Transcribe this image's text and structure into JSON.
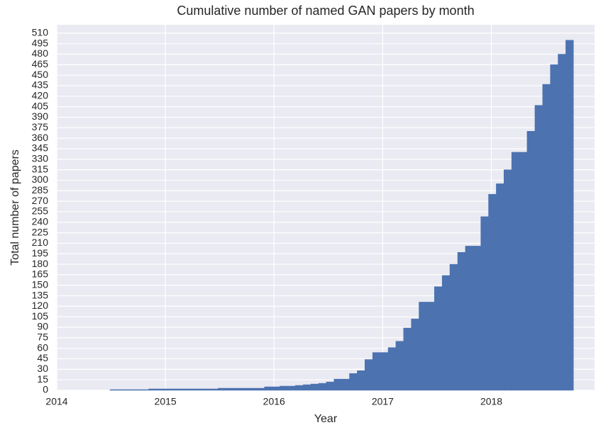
{
  "chart_data": {
    "type": "histogram",
    "title": "Cumulative number of named GAN papers by month",
    "xlabel": "Year",
    "ylabel": "Total number of papers",
    "bins": [
      2014.49,
      2014.561,
      2014.632,
      2014.703,
      2014.774,
      2014.846,
      2014.917,
      2014.988,
      2015.059,
      2015.13,
      2015.201,
      2015.272,
      2015.343,
      2015.414,
      2015.485,
      2015.557,
      2015.628,
      2015.699,
      2015.77,
      2015.841,
      2015.912,
      2015.983,
      2016.054,
      2016.125,
      2016.196,
      2016.268,
      2016.339,
      2016.41,
      2016.481,
      2016.552,
      2016.623,
      2016.694,
      2016.765,
      2016.836,
      2016.907,
      2016.979,
      2017.05,
      2017.121,
      2017.192,
      2017.263,
      2017.334,
      2017.405,
      2017.476,
      2017.547,
      2017.618,
      2017.69,
      2017.761,
      2017.832,
      2017.903,
      2017.974,
      2018.045,
      2018.116,
      2018.187,
      2018.258,
      2018.329,
      2018.401,
      2018.472,
      2018.543,
      2018.614,
      2018.685,
      2018.756
    ],
    "values": [
      1,
      1,
      1,
      1,
      1,
      2,
      2,
      2,
      2,
      2,
      2,
      2,
      2,
      2,
      3,
      3,
      3,
      3,
      3,
      3,
      5,
      5,
      6,
      6,
      7,
      8,
      9,
      10,
      12,
      16,
      16,
      24,
      28,
      44,
      54,
      54,
      61,
      70,
      89,
      102,
      126,
      126,
      148,
      164,
      180,
      197,
      206,
      206,
      248,
      280,
      295,
      315,
      340,
      340,
      370,
      407,
      437,
      465,
      480,
      500
    ],
    "color": "#4c72b0",
    "xlim": [
      2014,
      2018.95
    ],
    "xticks": [
      2014,
      2015,
      2016,
      2017,
      2018
    ],
    "ylim": [
      0,
      522
    ],
    "yticks": [
      0,
      15,
      30,
      45,
      60,
      75,
      90,
      105,
      120,
      135,
      150,
      165,
      180,
      195,
      210,
      225,
      240,
      255,
      270,
      285,
      300,
      315,
      330,
      345,
      360,
      375,
      390,
      405,
      420,
      435,
      450,
      465,
      480,
      495,
      510
    ],
    "grid": true
  }
}
